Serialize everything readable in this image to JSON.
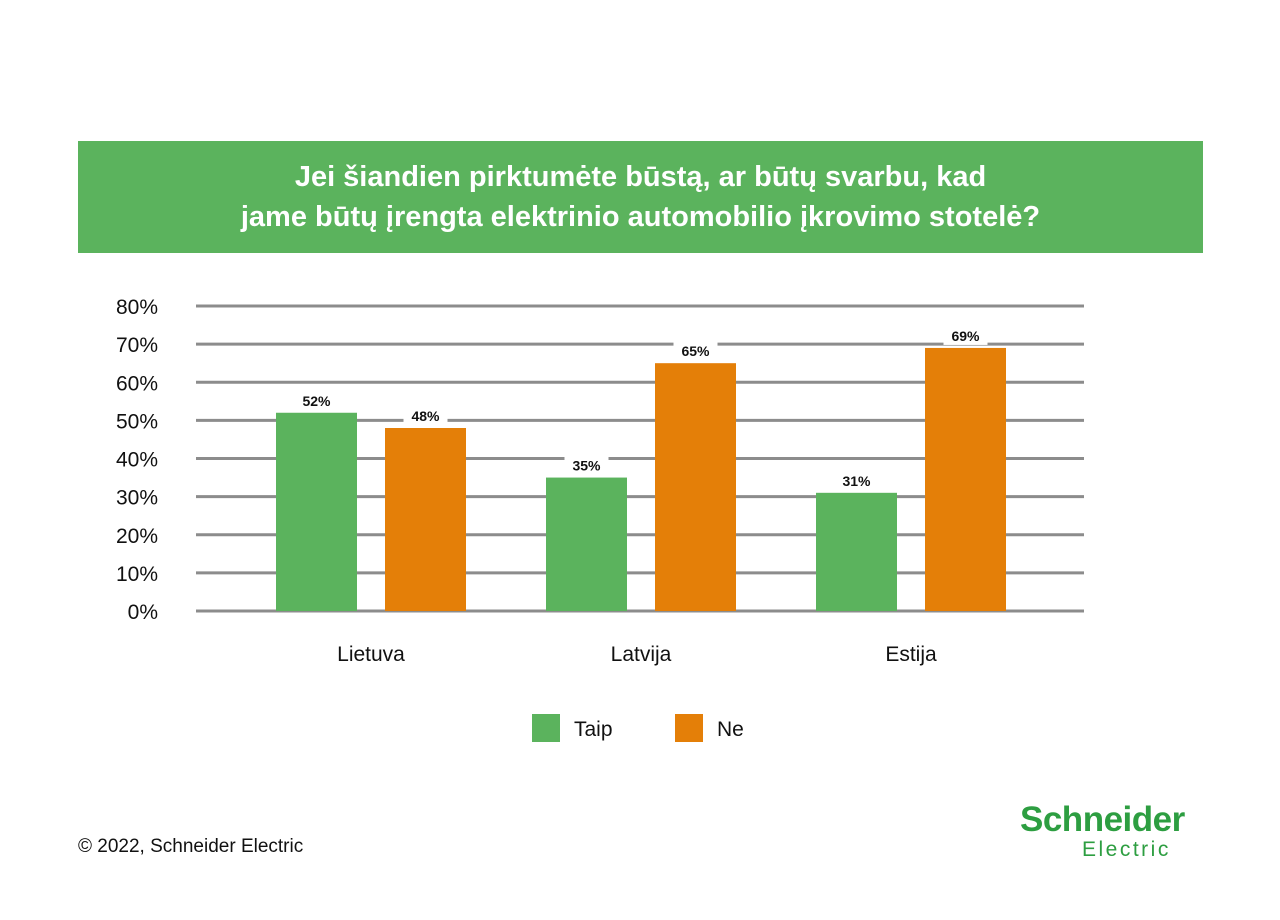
{
  "title_lines": [
    "Jei šiandien pirktumėte būstą, ar būtų svarbu, kad",
    "jame būtų įrengta elektrinio automobilio įkrovimo stotelė?"
  ],
  "chart_data": {
    "type": "bar",
    "title": "Jei šiandien pirktumėte būstą, ar būtų svarbu, kad jame būtų įrengta elektrinio automobilio įkrovimo stotelė?",
    "categories": [
      "Lietuva",
      "Latvija",
      "Estija"
    ],
    "series": [
      {
        "name": "Taip",
        "values": [
          52,
          35,
          31
        ],
        "color": "#5bb35d"
      },
      {
        "name": "Ne",
        "values": [
          48,
          65,
          69
        ],
        "color": "#e47f08"
      }
    ],
    "yticks": [
      "0%",
      "10%",
      "20%",
      "30%",
      "40%",
      "50%",
      "60%",
      "70%",
      "80%"
    ],
    "ylim": [
      0,
      80
    ],
    "grid": true,
    "legend": "bottom",
    "xlabel": "",
    "ylabel": ""
  },
  "footer": {
    "copyright": "© 2022, Schneider Electric",
    "logo_line1": "Schneider",
    "logo_line2": "Electric"
  }
}
